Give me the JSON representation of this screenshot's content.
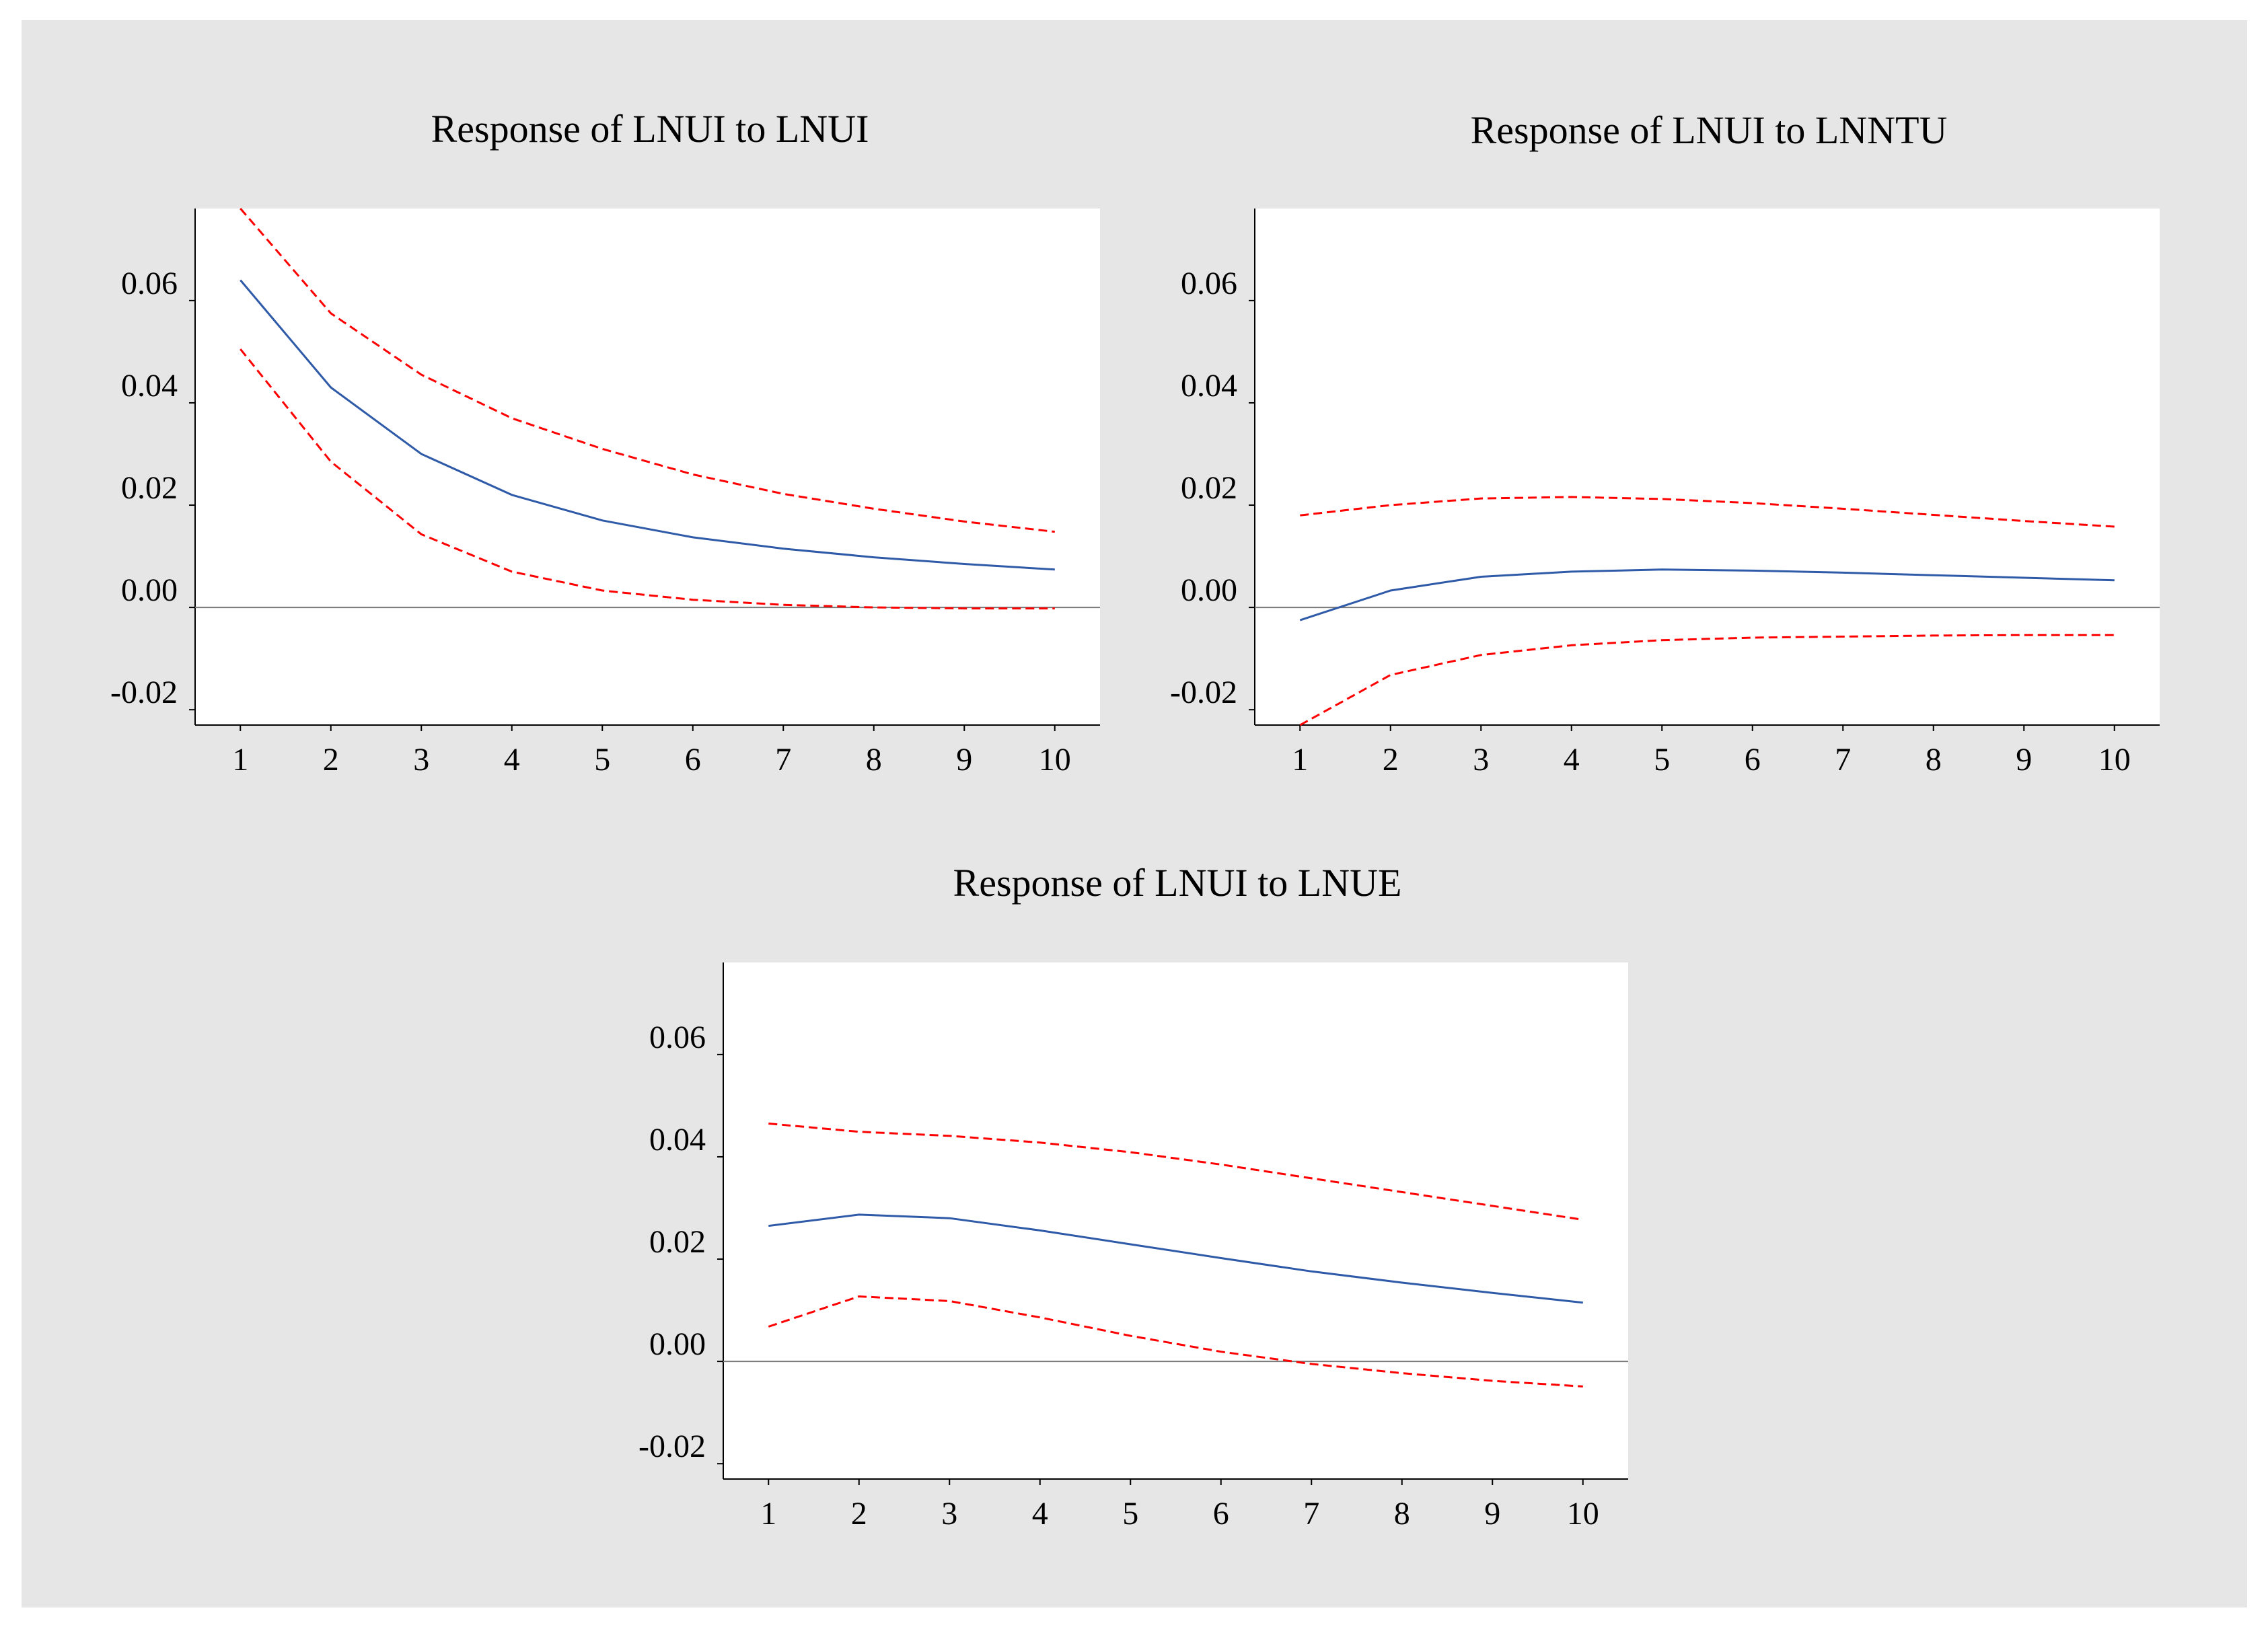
{
  "colors": {
    "page_background": "#e6e6e6",
    "plot_background": "#ffffff",
    "response_line": "#2e5aa8",
    "band_line": "#ff0000",
    "zero_line": "#7a7a7a",
    "axis": "#000000"
  },
  "chart_data": [
    {
      "type": "line",
      "title": "Response of LNUI to LNUI",
      "xlabel": "",
      "ylabel": "",
      "x": [
        1,
        2,
        3,
        4,
        5,
        6,
        7,
        8,
        9,
        10
      ],
      "x_tick_labels": [
        "1",
        "2",
        "3",
        "4",
        "5",
        "6",
        "7",
        "8",
        "9",
        "10"
      ],
      "y_ticks": [
        -0.02,
        0.0,
        0.02,
        0.04,
        0.06
      ],
      "y_tick_labels": [
        "-0.02",
        "0.00",
        "0.02",
        "0.04",
        "0.06"
      ],
      "ylim": [
        -0.023,
        0.078
      ],
      "grid": false,
      "series": [
        {
          "name": "response",
          "style": "solid",
          "values": [
            0.064,
            0.043,
            0.03,
            0.022,
            0.017,
            0.0137,
            0.0115,
            0.0098,
            0.0085,
            0.0074
          ]
        },
        {
          "name": "upper band",
          "style": "dashed",
          "values": [
            0.078,
            0.0575,
            0.0455,
            0.037,
            0.031,
            0.026,
            0.0222,
            0.0193,
            0.0168,
            0.0148
          ]
        },
        {
          "name": "lower band",
          "style": "dashed",
          "values": [
            0.0505,
            0.0285,
            0.0143,
            0.007,
            0.0033,
            0.0015,
            0.0005,
            0.0,
            -0.0002,
            -0.0002
          ]
        }
      ]
    },
    {
      "type": "line",
      "title": "Response of LNUI to LNNTU",
      "xlabel": "",
      "ylabel": "",
      "x": [
        1,
        2,
        3,
        4,
        5,
        6,
        7,
        8,
        9,
        10
      ],
      "x_tick_labels": [
        "1",
        "2",
        "3",
        "4",
        "5",
        "6",
        "7",
        "8",
        "9",
        "10"
      ],
      "y_ticks": [
        -0.02,
        0.0,
        0.02,
        0.04,
        0.06
      ],
      "y_tick_labels": [
        "-0.02",
        "0.00",
        "0.02",
        "0.04",
        "0.06"
      ],
      "ylim": [
        -0.023,
        0.078
      ],
      "grid": false,
      "series": [
        {
          "name": "response",
          "style": "solid",
          "values": [
            -0.0025,
            0.0033,
            0.006,
            0.007,
            0.0074,
            0.0072,
            0.0068,
            0.0063,
            0.0058,
            0.0053
          ]
        },
        {
          "name": "upper band",
          "style": "dashed",
          "values": [
            0.018,
            0.02,
            0.0213,
            0.0216,
            0.0212,
            0.0204,
            0.0193,
            0.0181,
            0.0169,
            0.0158
          ]
        },
        {
          "name": "lower band",
          "style": "dashed",
          "values": [
            -0.023,
            -0.0132,
            -0.0093,
            -0.0074,
            -0.0064,
            -0.0059,
            -0.0057,
            -0.0055,
            -0.0054,
            -0.0054
          ]
        }
      ]
    },
    {
      "type": "line",
      "title": "Response of LNUI to LNUE",
      "xlabel": "",
      "ylabel": "",
      "x": [
        1,
        2,
        3,
        4,
        5,
        6,
        7,
        8,
        9,
        10
      ],
      "x_tick_labels": [
        "1",
        "2",
        "3",
        "4",
        "5",
        "6",
        "7",
        "8",
        "9",
        "10"
      ],
      "y_ticks": [
        -0.02,
        0.0,
        0.02,
        0.04,
        0.06
      ],
      "y_tick_labels": [
        "-0.02",
        "0.00",
        "0.02",
        "0.04",
        "0.06"
      ],
      "ylim": [
        -0.023,
        0.078
      ],
      "grid": false,
      "series": [
        {
          "name": "response",
          "style": "solid",
          "values": [
            0.0265,
            0.0287,
            0.028,
            0.0256,
            0.0229,
            0.0202,
            0.0176,
            0.0154,
            0.0134,
            0.0115
          ]
        },
        {
          "name": "upper band",
          "style": "dashed",
          "values": [
            0.0465,
            0.0449,
            0.0441,
            0.0428,
            0.0409,
            0.0385,
            0.0358,
            0.0331,
            0.0304,
            0.0277
          ]
        },
        {
          "name": "lower band",
          "style": "dashed",
          "values": [
            0.0068,
            0.0127,
            0.0118,
            0.0086,
            0.005,
            0.0019,
            -0.0005,
            -0.0023,
            -0.0038,
            -0.0049
          ]
        }
      ]
    }
  ]
}
